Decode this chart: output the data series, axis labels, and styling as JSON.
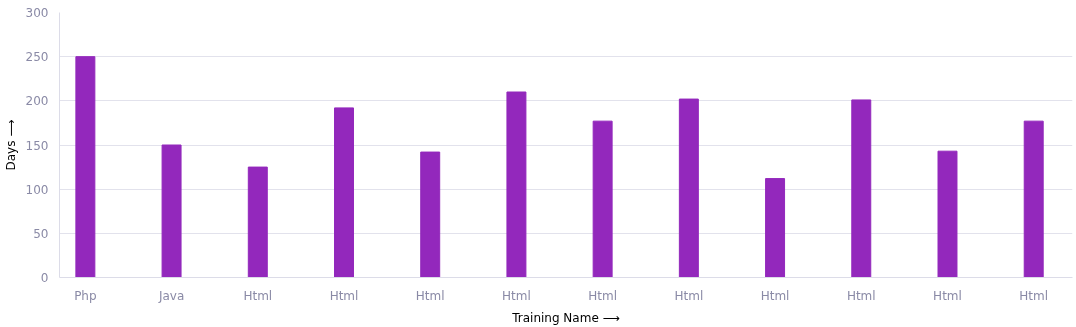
{
  "chart_data": {
    "type": "bar",
    "xlabel": "Training Name ⟶",
    "ylabel": "Days ⟶",
    "categories": [
      "Php",
      "Java",
      "Html",
      "Html",
      "Html",
      "Html",
      "Html",
      "Html",
      "Html",
      "Html",
      "Html",
      "Html"
    ],
    "values": [
      250,
      150,
      125,
      192,
      142,
      210,
      177,
      202,
      112,
      201,
      143,
      177
    ],
    "color": "#9328bc",
    "ylim": [
      0,
      300
    ],
    "yticks": [
      0,
      50,
      100,
      150,
      200,
      250,
      300
    ],
    "grid": "y"
  }
}
